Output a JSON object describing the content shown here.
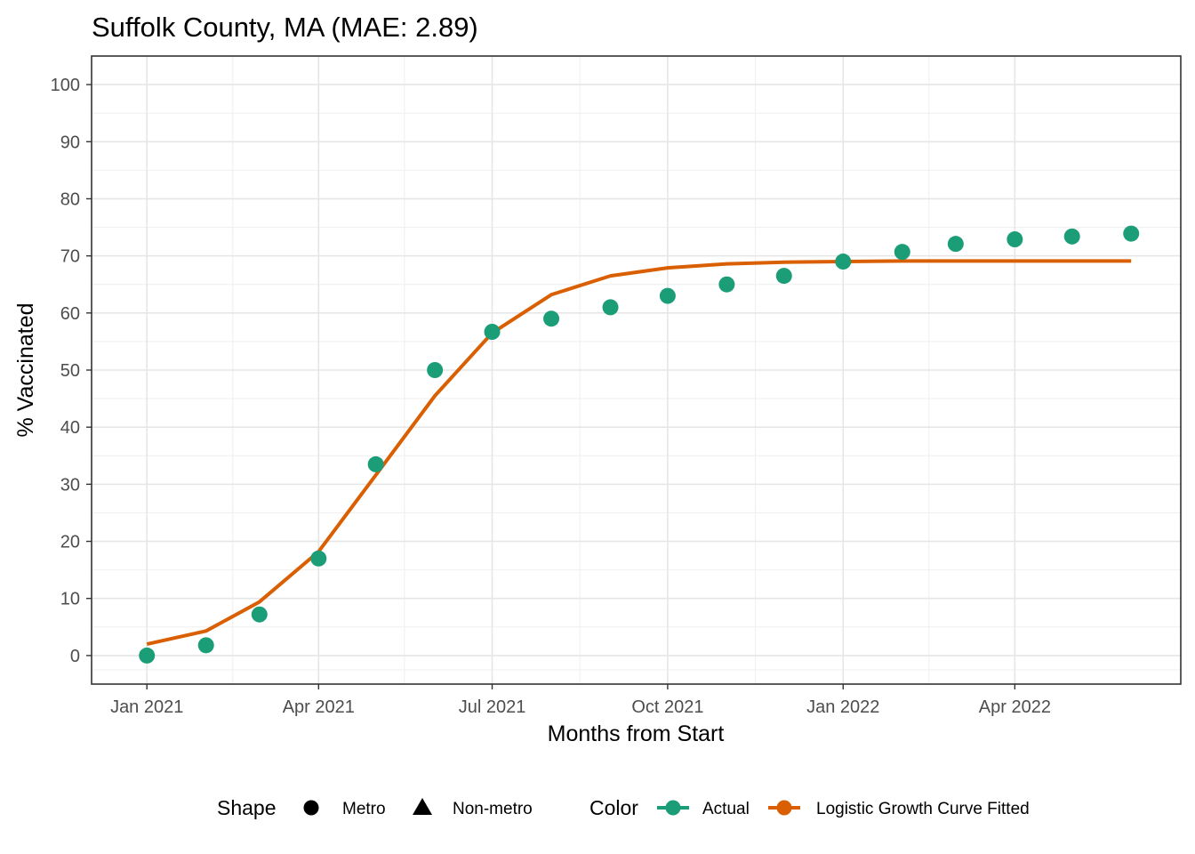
{
  "chart_data": {
    "type": "line",
    "title": "Suffolk County, MA (MAE: 2.89)",
    "xlabel": "Months from Start",
    "ylabel": "% Vaccinated",
    "x": [
      "2021-01-01",
      "2021-02-01",
      "2021-03-01",
      "2021-04-01",
      "2021-05-01",
      "2021-06-01",
      "2021-07-01",
      "2021-08-01",
      "2021-09-01",
      "2021-10-01",
      "2021-11-01",
      "2021-12-01",
      "2022-01-01",
      "2022-02-01",
      "2022-03-01",
      "2022-04-01",
      "2022-05-01",
      "2022-06-01"
    ],
    "xlim": [
      "2020-12-03",
      "2022-06-27"
    ],
    "ylim": [
      -5,
      105
    ],
    "x_ticks": [
      {
        "date": "2021-01-01",
        "label": "Jan 2021"
      },
      {
        "date": "2021-04-01",
        "label": "Apr 2021"
      },
      {
        "date": "2021-07-01",
        "label": "Jul 2021"
      },
      {
        "date": "2021-10-01",
        "label": "Oct 2021"
      },
      {
        "date": "2022-01-01",
        "label": "Jan 2022"
      },
      {
        "date": "2022-04-01",
        "label": "Apr 2022"
      }
    ],
    "x_minor_ticks": [
      "2021-02-15",
      "2021-05-16",
      "2021-08-16",
      "2021-11-16",
      "2022-02-15"
    ],
    "y_ticks": [
      0,
      10,
      20,
      30,
      40,
      50,
      60,
      70,
      80,
      90,
      100
    ],
    "grid": true,
    "legend_position": "bottom",
    "series": [
      {
        "name": "Actual",
        "kind": "point",
        "shape": "Metro",
        "color": "#1B9E77",
        "values": [
          0,
          1.8,
          7.2,
          17,
          33.5,
          50,
          56.7,
          59,
          61,
          63,
          65,
          66.5,
          69,
          70.7,
          72.1,
          72.9,
          73.4,
          73.9
        ]
      },
      {
        "name": "Logistic Growth Curve Fitted",
        "kind": "line",
        "color": "#D95F02",
        "values": [
          2,
          4.3,
          9.4,
          18.2,
          31.6,
          45.5,
          56.5,
          63.2,
          66.5,
          67.9,
          68.6,
          68.9,
          69.0,
          69.1,
          69.1,
          69.1,
          69.1,
          69.1
        ]
      }
    ]
  },
  "legend": {
    "shape_title": "Shape",
    "shape_items": [
      "Metro",
      "Non-metro"
    ],
    "color_title": "Color",
    "color_items": [
      {
        "label": "Actual",
        "color": "#1B9E77"
      },
      {
        "label": "Logistic Growth Curve Fitted",
        "color": "#D95F02"
      }
    ]
  }
}
